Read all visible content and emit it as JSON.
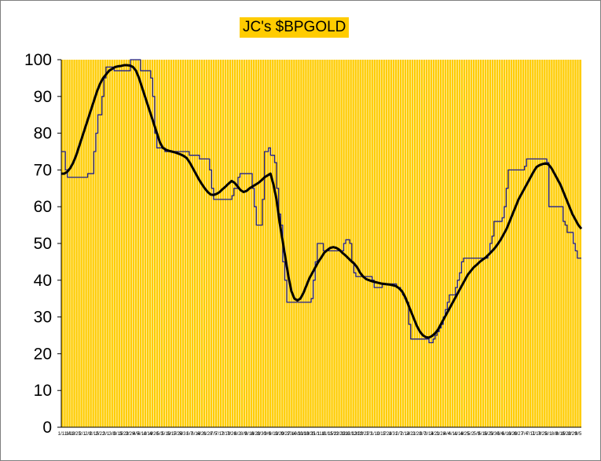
{
  "chart_data": {
    "type": "line",
    "title": "JC's $BPGOLD",
    "xlabel": "",
    "ylabel": "",
    "ylim": [
      0,
      100
    ],
    "y_ticks": [
      0,
      10,
      20,
      30,
      40,
      50,
      60,
      70,
      80,
      90,
      100
    ],
    "grid": "vertical",
    "legend": "none",
    "x_tick_labels": [
      "1/11/4",
      "1/18",
      "1/25",
      "2/1",
      "2/8",
      "2/15",
      "2/22",
      "3/1",
      "3/8",
      "3/15",
      "3/22",
      "3/29",
      "4/5",
      "4/12",
      "4/19",
      "4/26",
      "5/3",
      "5/10",
      "5/17",
      "5/24",
      "5/31",
      "6/7",
      "6/14",
      "6/21",
      "6/28",
      "7/5",
      "7/12",
      "7/19",
      "7/26",
      "8/2",
      "8/9",
      "8/16",
      "8/23",
      "8/30",
      "9/6",
      "9/13",
      "9/20",
      "9/27",
      "10/4",
      "10/11",
      "10/18",
      "10/25",
      "11/1",
      "11/8",
      "11/15",
      "11/22",
      "11/29",
      "12/6",
      "12/13",
      "12/20",
      "12/27",
      "1/3",
      "1/10",
      "1/17",
      "1/24",
      "1/31",
      "2/7",
      "2/14",
      "2/21",
      "2/28",
      "3/7",
      "3/14",
      "3/21",
      "3/28",
      "4/4",
      "4/11",
      "4/18",
      "4/25",
      "5/2",
      "5/9",
      "5/16",
      "5/23",
      "5/30",
      "6/6",
      "6/13",
      "6/20",
      "6/27",
      "7/4",
      "7/11",
      "7/18",
      "7/25",
      "8/1",
      "8/8",
      "8/15",
      "8/22",
      "8/29",
      "9/5"
    ],
    "colors": {
      "background": "#ffcc00",
      "grid": "#ffffff",
      "raw_series": "#1f1f8f",
      "smoothed_series": "#000000"
    },
    "series": [
      {
        "values": [
          75,
          75,
          70,
          68,
          68,
          68,
          68,
          68,
          68,
          68,
          68,
          68,
          68,
          69,
          69,
          69,
          75,
          80,
          85,
          85,
          90,
          95,
          98,
          98,
          98,
          98,
          97,
          97,
          97,
          97,
          97,
          97,
          97,
          97,
          100,
          100,
          100,
          100,
          100,
          97,
          97,
          97,
          97,
          97,
          95,
          90,
          80,
          76,
          76,
          76,
          76,
          75,
          75,
          75,
          75,
          75,
          75,
          75,
          75,
          75,
          75,
          75,
          75,
          74,
          74,
          74,
          74,
          74,
          73,
          73,
          73,
          73,
          73,
          70,
          65,
          62,
          62,
          62,
          62,
          62,
          62,
          62,
          62,
          62,
          63,
          65,
          65,
          68,
          69,
          69,
          69,
          69,
          69,
          69,
          65,
          60,
          55,
          55,
          55,
          62,
          75,
          75,
          76,
          74,
          74,
          72,
          65,
          58,
          55,
          45,
          40,
          34,
          34,
          34,
          34,
          34,
          34,
          34,
          34,
          34,
          34,
          34,
          34,
          35,
          40,
          45,
          50,
          50,
          50,
          48,
          48,
          48,
          48,
          48,
          48,
          48,
          48,
          48,
          48,
          50,
          51,
          51,
          50,
          45,
          42,
          41,
          41,
          41,
          41,
          41,
          41,
          41,
          41,
          40,
          38,
          38,
          38,
          38,
          39,
          39,
          39,
          39,
          39,
          39,
          39,
          38,
          38,
          37,
          36,
          35,
          34,
          28,
          24,
          24,
          24,
          24,
          24,
          24,
          24,
          24,
          24,
          23,
          23,
          24,
          25,
          26,
          27,
          28,
          30,
          32,
          34,
          36,
          36,
          36,
          38,
          40,
          42,
          45,
          46,
          46,
          46,
          46,
          46,
          46,
          46,
          46,
          46,
          46,
          46,
          46,
          47,
          50,
          52,
          56,
          56,
          56,
          56,
          57,
          60,
          65,
          70,
          70,
          70,
          70,
          70,
          70,
          70,
          70,
          71,
          73,
          73,
          73,
          73,
          73,
          73,
          73,
          73,
          73,
          73,
          72,
          60,
          60,
          60,
          60,
          60,
          60,
          60,
          56,
          55,
          53,
          53,
          53,
          50,
          48,
          46,
          46
        ]
      },
      {
        "values": [
          69,
          69,
          69.5,
          70.5,
          72,
          74,
          76.5,
          79,
          81.5,
          84,
          86.5,
          89,
          91.5,
          93.5,
          95,
          96,
          97,
          97.5,
          98,
          98.2,
          98.3,
          98.5,
          98.5,
          98.4,
          98,
          97,
          95,
          92.5,
          90,
          87.5,
          85,
          82.5,
          80,
          77.5,
          76,
          75.5,
          75.2,
          75,
          74.8,
          74.5,
          74.2,
          73.8,
          73.2,
          72,
          70.5,
          69,
          67.5,
          66.2,
          65,
          64,
          63.3,
          63.2,
          63.5,
          64,
          64.8,
          65.5,
          66.3,
          67,
          66.5,
          65.5,
          64.5,
          64,
          64.3,
          65,
          65.5,
          66,
          66.5,
          67.2,
          68,
          68.5,
          69,
          66,
          62,
          56,
          51,
          46,
          41,
          37,
          35,
          34.5,
          35,
          36.5,
          38.5,
          40.5,
          42,
          43.5,
          45,
          46.2,
          47.5,
          48.2,
          48.8,
          49,
          48.8,
          48.3,
          47.5,
          46.8,
          46,
          45.2,
          44.5,
          43.5,
          42,
          41,
          40.3,
          40,
          39.7,
          39.5,
          39.3,
          39.1,
          39,
          38.9,
          38.8,
          38.6,
          38.4,
          37.8,
          37,
          35.5,
          33.5,
          31.5,
          29.5,
          27.5,
          26,
          25,
          24.5,
          24.4,
          24.8,
          25.5,
          26.5,
          28,
          29.5,
          31,
          32.5,
          34,
          35.5,
          37,
          38.5,
          40,
          41.5,
          42.5,
          43.5,
          44.2,
          45,
          45.6,
          46.2,
          47,
          47.8,
          48.7,
          49.8,
          51,
          52.5,
          54,
          56,
          58,
          60,
          62,
          63.5,
          65,
          66.5,
          68,
          69.5,
          70.8,
          71.3,
          71.6,
          71.8,
          71.5,
          70.5,
          69,
          67.5,
          66,
          64,
          62,
          60,
          58,
          56.5,
          55,
          54
        ]
      }
    ]
  }
}
